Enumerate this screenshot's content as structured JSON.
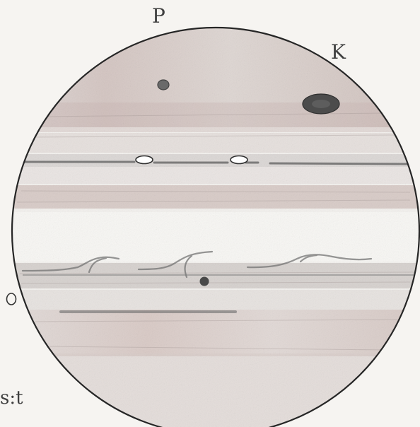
{
  "sketch": {
    "direction_labels": {
      "top": "P",
      "top_right": "K"
    },
    "caption_text": "s:t",
    "colors": {
      "paper": "#f6f4f1",
      "pencil": "#262626",
      "band_tone": "#a99f9b",
      "warm_band": "#c9b0ab",
      "spot_fill": "#4f4f4f"
    }
  }
}
